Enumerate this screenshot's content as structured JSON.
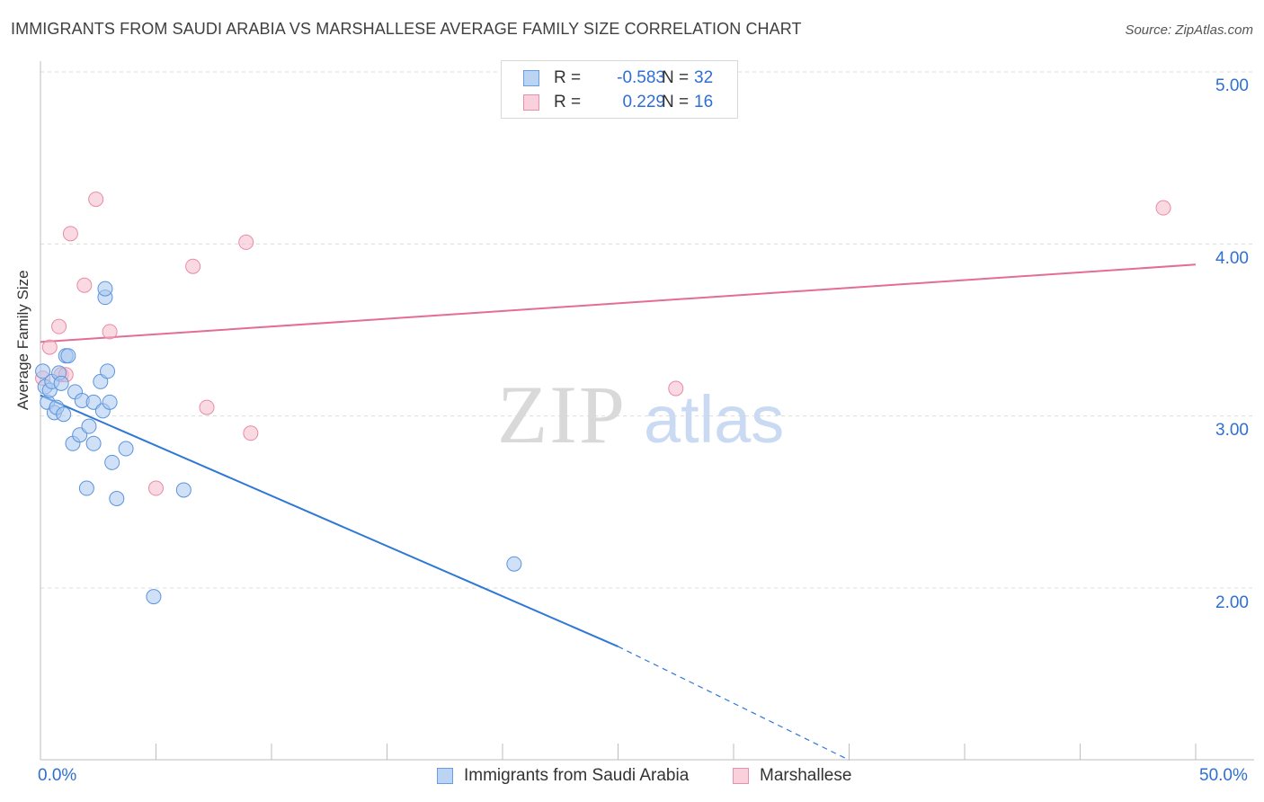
{
  "title": "IMMIGRANTS FROM SAUDI ARABIA VS MARSHALLESE AVERAGE FAMILY SIZE CORRELATION CHART",
  "source": "Source: ZipAtlas.com",
  "watermark": {
    "zip": "ZIP",
    "atlas": "atlas"
  },
  "legend": {
    "r_label": "R =",
    "n_label": "N =",
    "series1": {
      "r": "-0.583",
      "n": "32"
    },
    "series2": {
      "r": "0.229",
      "n": "16"
    }
  },
  "colors": {
    "series1_fill": "#a9c8f0",
    "series1_stroke": "#5b93dc",
    "series1_line": "#2f78d6",
    "series2_fill": "#f6bccb",
    "series2_stroke": "#e98aa6",
    "series2_line": "#e36d93",
    "tick_text": "#2e6fd0"
  },
  "chart_data": {
    "type": "scatter",
    "title": "IMMIGRANTS FROM SAUDI ARABIA VS MARSHALLESE AVERAGE FAMILY SIZE CORRELATION CHART",
    "xlabel": "",
    "ylabel": "Average Family Size",
    "xlim": [
      0,
      50
    ],
    "ylim": [
      1.0,
      5.15
    ],
    "x_tick_labels": [
      "0.0%",
      "50.0%"
    ],
    "y_ticks": [
      2.0,
      3.0,
      4.0,
      5.0
    ],
    "y_tick_labels": [
      "2.00",
      "3.00",
      "4.00",
      "5.00"
    ],
    "grid": "horizontal dashed",
    "legend_position": "top-center",
    "series": [
      {
        "name": "Immigrants from Saudi Arabia",
        "r": -0.583,
        "n": 32,
        "points": [
          [
            0.1,
            3.26
          ],
          [
            0.2,
            3.17
          ],
          [
            0.3,
            3.08
          ],
          [
            0.4,
            3.15
          ],
          [
            0.5,
            3.2
          ],
          [
            0.6,
            3.02
          ],
          [
            0.7,
            3.05
          ],
          [
            0.8,
            3.25
          ],
          [
            0.9,
            3.19
          ],
          [
            1.0,
            3.01
          ],
          [
            1.1,
            3.35
          ],
          [
            1.2,
            3.35
          ],
          [
            1.4,
            2.84
          ],
          [
            1.5,
            3.14
          ],
          [
            1.7,
            2.89
          ],
          [
            1.8,
            3.09
          ],
          [
            2.0,
            2.58
          ],
          [
            2.1,
            2.94
          ],
          [
            2.3,
            3.08
          ],
          [
            2.3,
            2.84
          ],
          [
            2.6,
            3.2
          ],
          [
            2.7,
            3.03
          ],
          [
            2.8,
            3.69
          ],
          [
            2.8,
            3.74
          ],
          [
            2.9,
            3.26
          ],
          [
            3.0,
            3.08
          ],
          [
            3.1,
            2.73
          ],
          [
            3.3,
            2.52
          ],
          [
            3.7,
            2.81
          ],
          [
            4.9,
            1.95
          ],
          [
            6.2,
            2.57
          ],
          [
            20.5,
            2.14
          ]
        ],
        "trend": {
          "x": [
            0,
            25
          ],
          "y": [
            3.12,
            1.66
          ],
          "dashed_extension": {
            "x": [
              25,
              35
            ],
            "y": [
              1.66,
              1.0
            ]
          }
        }
      },
      {
        "name": "Marshallese",
        "r": 0.229,
        "n": 16,
        "points": [
          [
            0.1,
            3.22
          ],
          [
            0.4,
            3.4
          ],
          [
            0.8,
            3.52
          ],
          [
            0.9,
            3.24
          ],
          [
            1.1,
            3.24
          ],
          [
            1.3,
            4.06
          ],
          [
            1.9,
            3.76
          ],
          [
            2.4,
            4.26
          ],
          [
            3.0,
            3.49
          ],
          [
            5.0,
            2.58
          ],
          [
            6.6,
            3.87
          ],
          [
            7.2,
            3.05
          ],
          [
            8.9,
            4.01
          ],
          [
            9.1,
            2.9
          ],
          [
            27.5,
            3.16
          ],
          [
            48.6,
            4.21
          ]
        ],
        "trend": {
          "x": [
            0,
            50
          ],
          "y": [
            3.43,
            3.88
          ]
        }
      }
    ]
  },
  "bottom_legend": {
    "series1_label": "Immigrants from Saudi Arabia",
    "series2_label": "Marshallese"
  }
}
